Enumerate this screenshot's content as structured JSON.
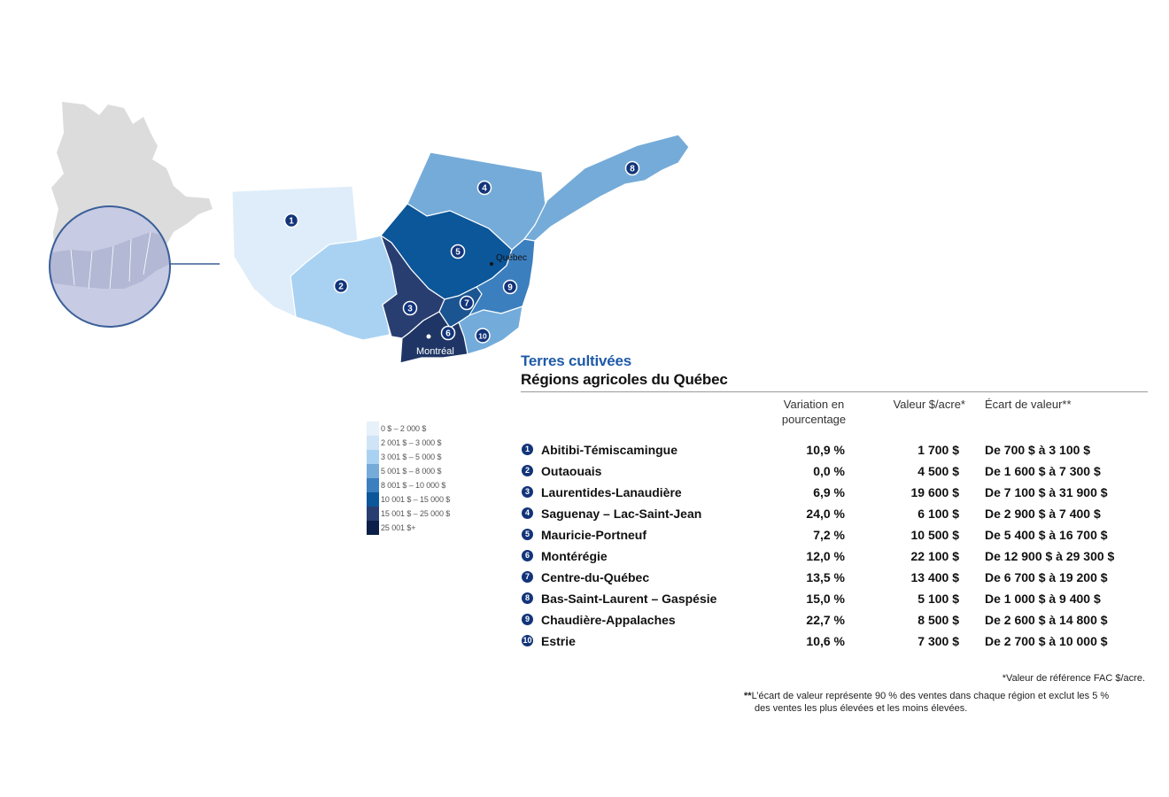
{
  "map": {
    "city_quebec": "Québec",
    "city_montreal": "Montréal",
    "colors": {
      "inset_gray": "#dcdcdc",
      "inset_circle_fill": "#c7cbe3",
      "inset_circle_stroke": "#3a5f98",
      "badge": "#12347a"
    },
    "regions": [
      {
        "num": "1",
        "color": "#deedf9"
      },
      {
        "num": "2",
        "color": "#a9d2f2"
      },
      {
        "num": "3",
        "color": "#293e70"
      },
      {
        "num": "4",
        "color": "#75abd8"
      },
      {
        "num": "5",
        "color": "#0c569a"
      },
      {
        "num": "6",
        "color": "#1f3565"
      },
      {
        "num": "7",
        "color": "#1b5591"
      },
      {
        "num": "8",
        "color": "#75abd8"
      },
      {
        "num": "9",
        "color": "#3c7fbf"
      },
      {
        "num": "10",
        "color": "#73acdb"
      }
    ]
  },
  "legend": [
    {
      "label": "0 $ – 2 000 $",
      "color": "#e7f1fa"
    },
    {
      "label": "2 001 $ – 3 000 $",
      "color": "#cfe4f6"
    },
    {
      "label": "3 001 $ – 5 000 $",
      "color": "#a9d2f2"
    },
    {
      "label": "5 001 $ – 8 000 $",
      "color": "#75abd8"
    },
    {
      "label": "8 001 $ – 10 000 $",
      "color": "#3c7fbf"
    },
    {
      "label": "10 001 $ – 15 000 $",
      "color": "#0c569a"
    },
    {
      "label": "15 001 $ – 25 000 $",
      "color": "#293e70"
    },
    {
      "label": "25 001 $+",
      "color": "#0c1f48"
    }
  ],
  "title": {
    "main": "Terres cultivées",
    "sub": "Régions agricoles du Québec"
  },
  "table": {
    "headers": {
      "variation_line1": "Variation en",
      "variation_line2": "pourcentage",
      "valeur": "Valeur $/acre*",
      "ecart": "Écart de valeur**"
    },
    "rows": [
      {
        "num": "1",
        "region": "Abitibi-Témiscamingue",
        "variation": "10,9 %",
        "valeur": "1 700 $",
        "ecart": "De 700 $ à 3 100 $"
      },
      {
        "num": "2",
        "region": "Outaouais",
        "variation": "0,0 %",
        "valeur": "4 500 $",
        "ecart": "De 1 600 $ à 7 300 $"
      },
      {
        "num": "3",
        "region": "Laurentides-Lanaudière",
        "variation": "6,9 %",
        "valeur": "19 600 $",
        "ecart": "De 7 100 $ à 31 900 $"
      },
      {
        "num": "4",
        "region": "Saguenay – Lac-Saint-Jean",
        "variation": "24,0 %",
        "valeur": "6 100 $",
        "ecart": "De 2 900 $ à 7 400 $"
      },
      {
        "num": "5",
        "region": "Mauricie-Portneuf",
        "variation": "7,2 %",
        "valeur": "10 500 $",
        "ecart": "De 5 400 $ à 16 700 $"
      },
      {
        "num": "6",
        "region": "Montérégie",
        "variation": "12,0 %",
        "valeur": "22 100 $",
        "ecart": "De 12 900 $ à 29 300 $"
      },
      {
        "num": "7",
        "region": "Centre-du-Québec",
        "variation": "13,5 %",
        "valeur": "13 400 $",
        "ecart": "De 6 700 $ à 19 200 $"
      },
      {
        "num": "8",
        "region": "Bas-Saint-Laurent – Gaspésie",
        "variation": "15,0 %",
        "valeur": "5 100 $",
        "ecart": "De 1 000 $ à 9 400 $"
      },
      {
        "num": "9",
        "region": "Chaudière-Appalaches",
        "variation": "22,7 %",
        "valeur": "8 500 $",
        "ecart": "De 2 600 $ à 14 800 $"
      },
      {
        "num": "10",
        "region": "Estrie",
        "variation": "10,6 %",
        "valeur": "7 300 $",
        "ecart": "De 2 700 $ à 10 000 $"
      }
    ]
  },
  "notes": {
    "note1": "*Valeur de référence FAC $/acre.",
    "note2_stars": "**",
    "note2_line1": "L’écart de valeur représente 90 % des ventes dans chaque région et exclut les 5 %",
    "note2_line2": "des ventes les plus élevées et les moins élevées."
  }
}
